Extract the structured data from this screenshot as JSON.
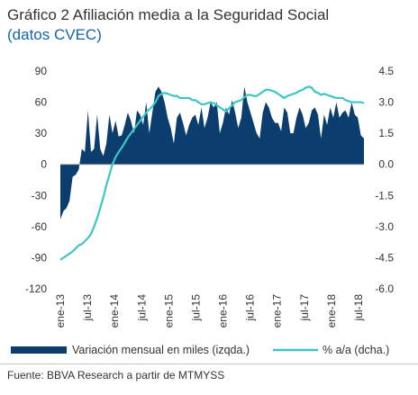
{
  "title": "Gráfico 2 Afiliación media a la Seguridad Social",
  "subtitle": "(datos CVEC)",
  "source": "Fuente: BBVA Research a partir de MTMYSS",
  "colors": {
    "bars": "#0b3d6e",
    "line": "#3cc6c6",
    "title": "#333333",
    "subtitle": "#1464a5"
  },
  "chart_data": {
    "type": "bar+line",
    "grid": false,
    "legend_position": "bottom",
    "x_tick_labels": [
      "ene-13",
      "jul-13",
      "ene-14",
      "jul-14",
      "ene-15",
      "jul-15",
      "ene-16",
      "jul-16",
      "ene-17",
      "jul-17",
      "ene-18",
      "jul-18"
    ],
    "y_left": {
      "ticks": [
        "90",
        "60",
        "30",
        "0",
        "-30",
        "-60",
        "-90",
        "-120"
      ],
      "range": [
        -120,
        90
      ]
    },
    "y_right": {
      "ticks": [
        "4.5",
        "3.0",
        "1.5",
        "0.0",
        "-1.5",
        "-3.0",
        "-4.5",
        "-6.0"
      ],
      "range": [
        -6.0,
        4.5
      ]
    },
    "legend": [
      "Variación mensual en miles (izqda.)",
      "% a/a (dcha.)"
    ],
    "series": [
      {
        "name": "Variación mensual en miles (izqda.)",
        "axis": "left",
        "type": "area",
        "values": [
          -53,
          -45,
          -42,
          -35,
          -12,
          -10,
          -5,
          15,
          12,
          52,
          12,
          15,
          48,
          15,
          8,
          20,
          48,
          30,
          42,
          27,
          28,
          38,
          50,
          42,
          30,
          52,
          48,
          38,
          60,
          30,
          50,
          70,
          75,
          70,
          60,
          45,
          35,
          20,
          45,
          50,
          40,
          28,
          38,
          45,
          48,
          38,
          55,
          35,
          45,
          60,
          55,
          60,
          30,
          40,
          55,
          48,
          62,
          50,
          35,
          45,
          75,
          60,
          50,
          40,
          30,
          25,
          50,
          60,
          55,
          45,
          40,
          40,
          32,
          55,
          50,
          30,
          30,
          45,
          55,
          48,
          35,
          40,
          52,
          55,
          48,
          25,
          48,
          38,
          55,
          45,
          60,
          45,
          50,
          52,
          45,
          60,
          48,
          45,
          28,
          25
        ]
      },
      {
        "name": "% a/a (dcha.)",
        "axis": "right",
        "type": "line",
        "values": [
          -4.6,
          -4.5,
          -4.4,
          -4.3,
          -4.2,
          -4.05,
          -3.9,
          -3.85,
          -3.7,
          -3.55,
          -3.35,
          -3.0,
          -2.6,
          -2.1,
          -1.6,
          -1.0,
          -0.5,
          0.0,
          0.35,
          0.6,
          0.8,
          1.05,
          1.3,
          1.5,
          1.7,
          1.9,
          2.1,
          2.3,
          2.5,
          2.65,
          2.8,
          3.0,
          3.3,
          3.4,
          3.45,
          3.4,
          3.35,
          3.3,
          3.3,
          3.2,
          3.2,
          3.2,
          3.2,
          3.1,
          3.1,
          3.0,
          2.9,
          2.9,
          2.95,
          3.0,
          2.95,
          2.85,
          2.75,
          2.65,
          2.55,
          2.7,
          2.85,
          3.0,
          3.05,
          3.1,
          3.25,
          3.35,
          3.35,
          3.3,
          3.3,
          3.4,
          3.5,
          3.6,
          3.6,
          3.55,
          3.5,
          3.4,
          3.3,
          3.2,
          3.3,
          3.35,
          3.4,
          3.45,
          3.55,
          3.6,
          3.7,
          3.75,
          3.7,
          3.5,
          3.45,
          3.35,
          3.4,
          3.35,
          3.3,
          3.25,
          3.2,
          3.2,
          3.2,
          3.1,
          3.05,
          3.0,
          3.0,
          3.0,
          3.0,
          2.95
        ]
      }
    ]
  }
}
